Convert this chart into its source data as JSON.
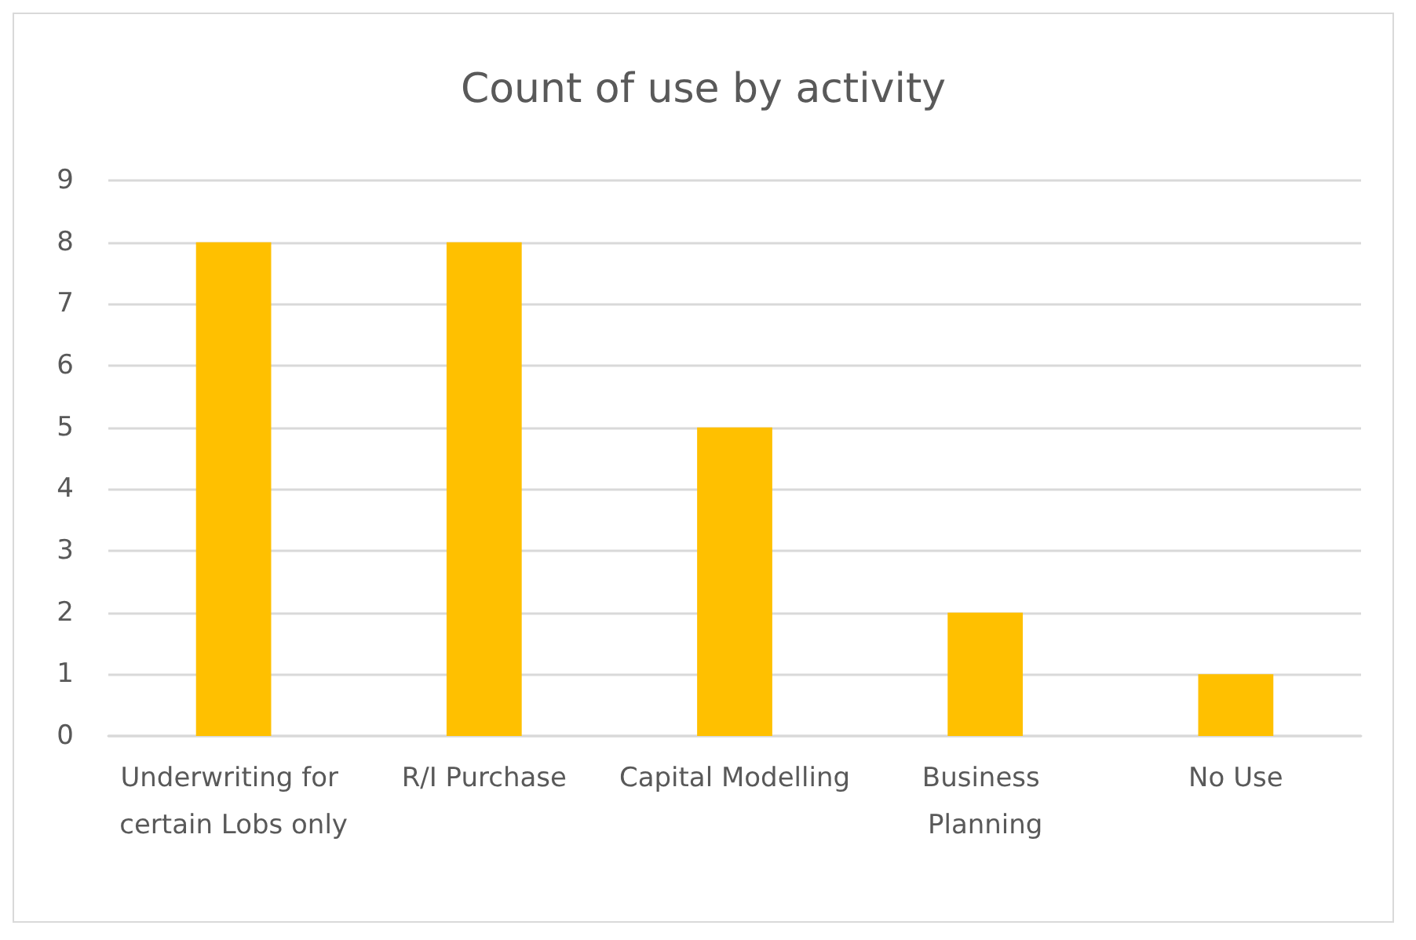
{
  "chart_data": {
    "type": "bar",
    "title": "Count of use by activity",
    "categories": [
      "Underwriting for certain Lobs only",
      "R/I Purchase",
      "Capital Modelling",
      "Business Planning",
      "No Use"
    ],
    "values": [
      8,
      8,
      5,
      2,
      1
    ],
    "color": "#ffc000",
    "ylim": [
      0,
      9
    ],
    "yticks": [
      0,
      1,
      2,
      3,
      4,
      5,
      6,
      7,
      8,
      9
    ],
    "grid": "y"
  }
}
